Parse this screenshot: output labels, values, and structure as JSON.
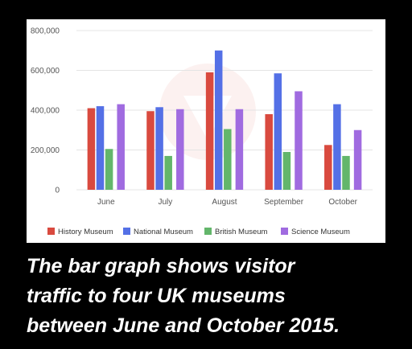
{
  "caption": {
    "line1": "The bar graph shows visitor",
    "line2": "traffic to four UK museums",
    "line3": "between June and October 2015."
  },
  "colors": {
    "background": "#000000",
    "panel": "#ffffff",
    "grid": "#e4e4e4"
  },
  "chart_data": {
    "type": "bar",
    "title": "",
    "xlabel": "",
    "ylabel": "",
    "categories": [
      "June",
      "July",
      "August",
      "September",
      "October"
    ],
    "yticks": [
      "0",
      "200,000",
      "400,000",
      "600,000",
      "800,000"
    ],
    "ylim": [
      0,
      800000
    ],
    "grid": true,
    "legend_position": "bottom",
    "series": [
      {
        "name": "History Museum",
        "color": "#d94a3f",
        "values": [
          410000,
          395000,
          590000,
          380000,
          225000
        ]
      },
      {
        "name": "National Museum",
        "color": "#5470e6",
        "values": [
          420000,
          415000,
          700000,
          585000,
          430000
        ]
      },
      {
        "name": "British Museum",
        "color": "#63b66b",
        "values": [
          205000,
          170000,
          305000,
          190000,
          170000
        ]
      },
      {
        "name": "Science Museum",
        "color": "#a06be0",
        "values": [
          430000,
          405000,
          405000,
          495000,
          300000
        ]
      }
    ]
  }
}
